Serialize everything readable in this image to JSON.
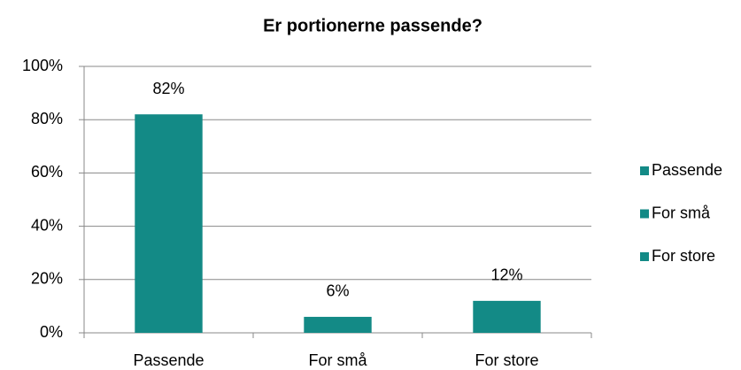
{
  "chart_data": {
    "type": "bar",
    "title": "Er portionerne passende?",
    "categories": [
      "Passende",
      "For små",
      "For store"
    ],
    "values": [
      82,
      6,
      12
    ],
    "value_labels": [
      "82%",
      "6%",
      "12%"
    ],
    "color": "#138a86",
    "ylim": [
      0,
      100
    ],
    "yticks": [
      {
        "value": 0,
        "label": "0%"
      },
      {
        "value": 20,
        "label": "20%"
      },
      {
        "value": 40,
        "label": "40%"
      },
      {
        "value": 60,
        "label": "60%"
      },
      {
        "value": 80,
        "label": "80%"
      },
      {
        "value": 100,
        "label": "100%"
      }
    ],
    "grid": true,
    "legend": "right"
  }
}
